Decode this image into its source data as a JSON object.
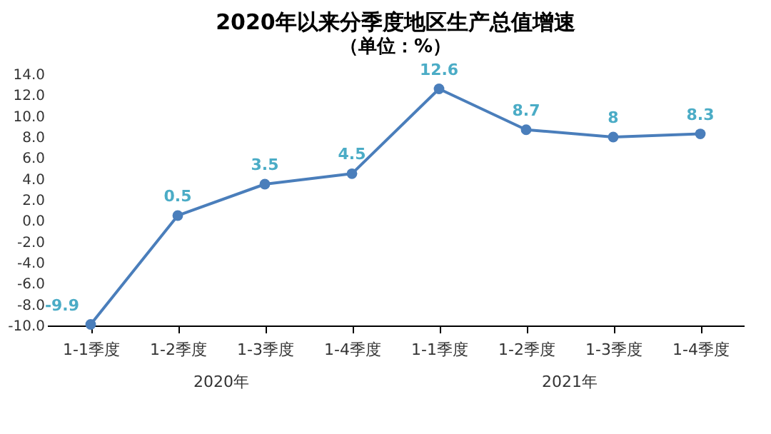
{
  "chart_data": {
    "type": "line",
    "title": "2020年以来分季度地区生产总值增速",
    "subtitle": "（单位：%）",
    "categories": [
      "1-1季度",
      "1-2季度",
      "1-3季度",
      "1-4季度",
      "1-1季度",
      "1-2季度",
      "1-3季度",
      "1-4季度"
    ],
    "series": [
      {
        "color": "#4a7ebb",
        "values": [
          -9.9,
          0.5,
          3.5,
          4.5,
          12.6,
          8.7,
          8,
          8.3
        ]
      }
    ],
    "ylim": [
      -10,
      14
    ],
    "yticks": [
      {
        "value": -10,
        "label": "-10.0"
      },
      {
        "value": -8,
        "label": "-8.0"
      },
      {
        "value": -6,
        "label": "-6.0"
      },
      {
        "value": -4,
        "label": "-4.0"
      },
      {
        "value": -2,
        "label": "-2.0"
      },
      {
        "value": 0,
        "label": "0.0"
      },
      {
        "value": 2,
        "label": "2.0"
      },
      {
        "value": 4,
        "label": "4.0"
      },
      {
        "value": 6,
        "label": "6.0"
      },
      {
        "value": 8,
        "label": "8.0"
      },
      {
        "value": 10,
        "label": "10.0"
      },
      {
        "value": 12,
        "label": "12.0"
      },
      {
        "value": 14,
        "label": "14.0"
      }
    ],
    "annotations": [
      "2020年",
      "2021年"
    ],
    "data_labels": true,
    "marker": "circle",
    "grid": false
  }
}
